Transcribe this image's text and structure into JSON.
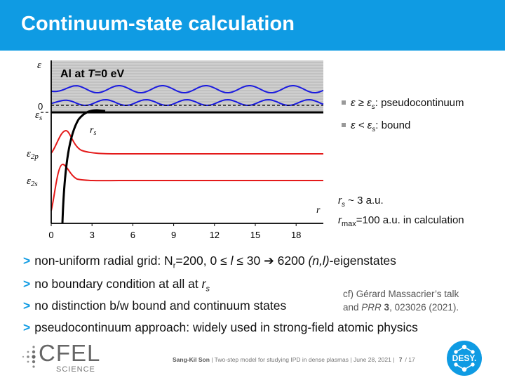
{
  "slide": {
    "title": "Continuum-state calculation",
    "right_bullets": [
      {
        "pre": "ε ≥ ε",
        "sub": "s",
        "post": ": pseudocontinuum"
      },
      {
        "pre": "ε < ε",
        "sub": "s",
        "post": ": bound"
      }
    ],
    "rs_note": {
      "a": "r",
      "b": "s",
      "c": " ~ 3 a.u."
    },
    "rmax_note": {
      "a": "r",
      "b": "max",
      "c": "=100 a.u. in calculation"
    },
    "bottom_bullets": {
      "b1": {
        "arrow": ">",
        "t1": "non-uniform radial grid: N",
        "t2": "r",
        "t3": "=200, 0 ≤ ",
        "t4": "l",
        "t5": " ≤ 30 ➔ 6200 ",
        "t6": "(n,l)",
        "t7": "-eigenstates"
      },
      "b2": {
        "arrow": ">",
        "t1": "no boundary condition at all at ",
        "t2": "r",
        "t3": "s"
      },
      "b3": {
        "arrow": ">",
        "t1": "no distinction b/w bound and continuum states"
      },
      "b4": {
        "arrow": ">",
        "t1": "pseudocontinuum approach: widely used in strong-field atomic physics"
      }
    },
    "citation": {
      "line1": "cf) Gérard Massacrier’s talk",
      "and": "and ",
      "journal": "PRR",
      "vol": " 3",
      "rest": ", 023026 (2021)."
    },
    "footer": {
      "author": "Sang-Kil Son",
      "sep1": " | ",
      "talk": "Two-step model for studying IPD in dense plasmas",
      "sep2": " | ",
      "date": "June 28, 2021",
      "sep3": " | ",
      "page": "7",
      "total": "/ 17"
    },
    "logos": {
      "cfel": "CFEL",
      "science": "SCIENCE",
      "desy": "DESY."
    }
  },
  "chart_data": {
    "type": "line",
    "title": "Al at T=0 eV",
    "xlabel": "r",
    "ylabel": "ε",
    "x_ticks": [
      "0",
      "3",
      "6",
      "9",
      "12",
      "15",
      "18"
    ],
    "xlim": [
      0,
      20
    ],
    "y_level_labels": [
      {
        "base": "0",
        "sub": ""
      },
      {
        "base": "ε",
        "sub": "s"
      },
      {
        "base": "ε",
        "sub": "2p"
      },
      {
        "base": "ε",
        "sub": "2s"
      }
    ],
    "rs_label": {
      "base": "r",
      "sub": "s"
    },
    "shaded_region": "pseudocontinuum (ε ≥ εs)",
    "series": [
      {
        "kind": "continuum-wave",
        "color": "#1a1ae0"
      },
      {
        "kind": "continuum-wave",
        "color": "#1a1ae0"
      },
      {
        "kind": "bound-2p",
        "color": "#e41a1a"
      },
      {
        "kind": "bound-2s",
        "color": "#e41a1a"
      },
      {
        "kind": "potential",
        "color": "#000000"
      }
    ]
  }
}
